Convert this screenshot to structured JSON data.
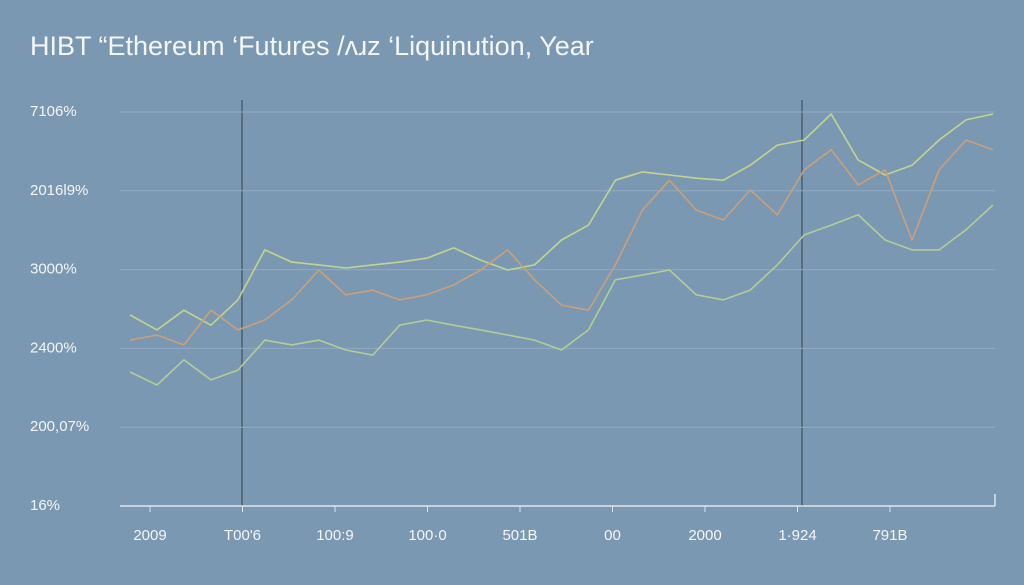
{
  "chart_data": {
    "type": "line",
    "title": "HIBT “Ethereum ‘Futures /ʌɹz ‘Liquinution, Year",
    "y_labels": [
      "16%",
      "200,07%",
      "2400%",
      "3000%",
      "2016l9%",
      "7106%"
    ],
    "x_labels": [
      "2009",
      "T00'6",
      "100:9",
      "100·0",
      "501B",
      "00",
      "2000",
      "1·924",
      "791B"
    ],
    "ylim": [
      0,
      100
    ],
    "grid": true,
    "series": [
      {
        "color": "#c2d48e",
        "values": [
          48.5,
          44.7,
          49.7,
          45.9,
          52.3,
          65.0,
          61.9,
          61.2,
          60.4,
          61.2,
          61.9,
          62.9,
          65.5,
          62.4,
          59.9,
          61.2,
          67.5,
          71.3,
          82.7,
          84.8,
          84.0,
          83.2,
          82.7,
          86.5,
          91.6,
          92.9,
          99.5,
          87.8,
          84.0,
          86.5,
          92.9,
          98.0,
          99.5
        ]
      },
      {
        "color": "#c9a07a",
        "values": [
          42.1,
          43.4,
          40.9,
          49.7,
          44.7,
          47.2,
          52.3,
          59.9,
          53.6,
          54.8,
          52.3,
          53.6,
          56.1,
          59.9,
          65.0,
          57.4,
          51.0,
          49.7,
          61.2,
          75.1,
          82.7,
          75.1,
          72.6,
          80.2,
          73.9,
          85.3,
          90.4,
          81.5,
          85.3,
          67.5,
          85.3,
          92.9,
          90.4
        ]
      },
      {
        "color": "#b3cc98",
        "values": [
          34.0,
          30.7,
          37.1,
          32.0,
          34.5,
          42.1,
          40.9,
          42.1,
          39.6,
          38.3,
          45.9,
          47.2,
          45.9,
          44.7,
          43.4,
          42.1,
          39.6,
          44.7,
          57.4,
          58.6,
          59.9,
          53.6,
          52.3,
          54.8,
          61.2,
          68.8,
          71.3,
          73.9,
          67.5,
          65.0,
          65.0,
          70.1,
          76.4
        ]
      }
    ]
  }
}
